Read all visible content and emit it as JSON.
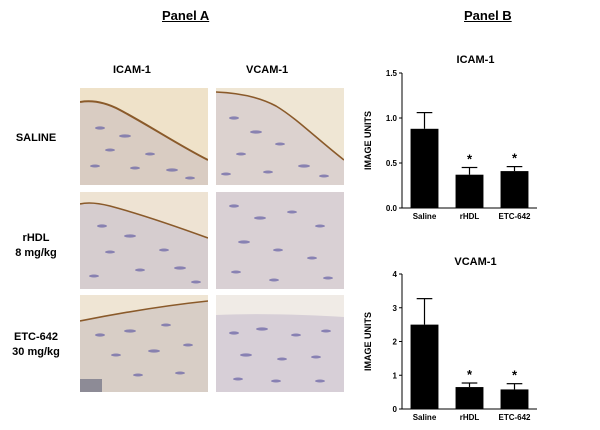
{
  "panel_a": {
    "title": "Panel A",
    "columns": [
      "ICAM-1",
      "VCAM-1"
    ],
    "rows": [
      {
        "line1": "SALINE",
        "line2": ""
      },
      {
        "line1": "rHDL",
        "line2": "8 mg/kg"
      },
      {
        "line1": "ETC-642",
        "line2": "30 mg/kg"
      }
    ]
  },
  "panel_b": {
    "title": "Panel B"
  },
  "chart_data": [
    {
      "type": "bar",
      "title": "ICAM-1",
      "ylabel": "IMAGE UNITS",
      "xlabel": "",
      "categories": [
        "Saline",
        "rHDL",
        "ETC-642"
      ],
      "values": [
        0.88,
        0.37,
        0.41
      ],
      "errors": [
        0.18,
        0.08,
        0.05
      ],
      "significance": [
        "",
        "*",
        "*"
      ],
      "ylim": [
        0,
        1.5
      ],
      "yticks": [
        0.0,
        0.5,
        1.0,
        1.5
      ],
      "ytick_labels": [
        "0.0",
        "0.5",
        "1.0",
        "1.5"
      ],
      "bar_color": "#000000",
      "grid": false
    },
    {
      "type": "bar",
      "title": "VCAM-1",
      "ylabel": "IMAGE UNITS",
      "xlabel": "",
      "categories": [
        "Saline",
        "rHDL",
        "ETC-642"
      ],
      "values": [
        2.5,
        0.65,
        0.58
      ],
      "errors": [
        0.77,
        0.12,
        0.17
      ],
      "significance": [
        "",
        "*",
        "*"
      ],
      "ylim": [
        0,
        4
      ],
      "yticks": [
        0,
        1,
        2,
        3,
        4
      ],
      "ytick_labels": [
        "0",
        "1",
        "2",
        "3",
        "4"
      ],
      "bar_color": "#000000",
      "grid": false
    }
  ]
}
